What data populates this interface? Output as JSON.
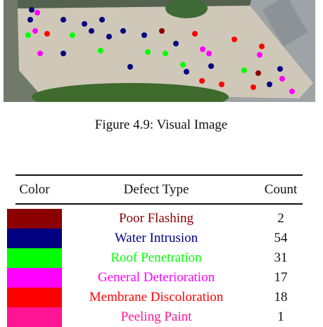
{
  "figure": {
    "caption": "Figure 4.9: Visual Image"
  },
  "table": {
    "header": [
      "Color",
      "Defect Type",
      "Count"
    ],
    "rows": [
      {
        "color": "#8b0000",
        "type": "Poor Flashing",
        "count": "2"
      },
      {
        "color": "#000080",
        "type": "Water Intrusion",
        "count": "54"
      },
      {
        "color": "#00ff00",
        "type": "Roof Penetration",
        "count": "31"
      },
      {
        "color": "#ff00ff",
        "type": "General Deterioration",
        "count": "17"
      },
      {
        "color": "#ff0000",
        "type": "Membrane Discoloration",
        "count": "18"
      },
      {
        "color": "#ff1493",
        "type": "Peeling Paint",
        "count": "1"
      }
    ]
  }
}
